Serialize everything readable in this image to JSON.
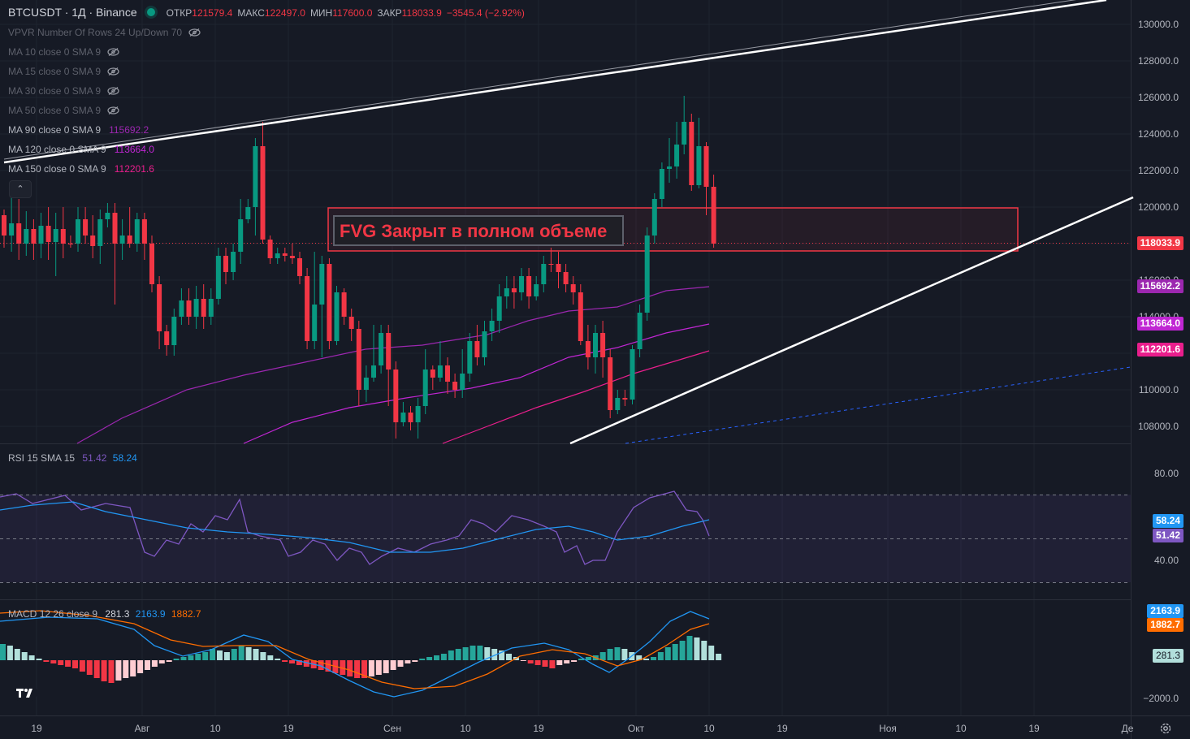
{
  "header": {
    "symbol": "BTCUSDT · 1Д · Binance",
    "open_label": "ОТКР",
    "open": "121579.4",
    "high_label": "МАКС",
    "high": "122497.0",
    "low_label": "МИН",
    "low": "117600.0",
    "close_label": "ЗАКР",
    "close": "118033.9",
    "change": "−3545.4 (−2.92%)"
  },
  "indicators": [
    {
      "label": "VPVR Number Of Rows 24 Up/Down 70",
      "value": "",
      "visible": false
    },
    {
      "label": "MA 10 close 0 SMA 9",
      "value": "",
      "visible": false
    },
    {
      "label": "MA 15 close 0 SMA 9",
      "value": "",
      "visible": false
    },
    {
      "label": "MA 30 close 0 SMA 9",
      "value": "",
      "visible": false
    },
    {
      "label": "MA 50 close 0 SMA 9",
      "value": "",
      "visible": false
    },
    {
      "label": "MA 90 close 0 SMA 9",
      "value": "115692.2",
      "visible": true,
      "color": "#9c27b0"
    },
    {
      "label": "MA 120 close 0 SMA 9",
      "value": "113664.0",
      "visible": true,
      "color": "#c026d3"
    },
    {
      "label": "MA 150 close 0 SMA 9",
      "value": "112201.6",
      "visible": true,
      "color": "#e91e8c"
    }
  ],
  "annotation": {
    "fvg_text": "FVG Закрыт в полном объеме"
  },
  "price_axis": {
    "ticks": [
      "130000.0",
      "128000.0",
      "126000.0",
      "124000.0",
      "122000.0",
      "120000.0",
      "116000.0",
      "114000.0",
      "110000.0",
      "108000.0"
    ],
    "badges": [
      {
        "value": "118033.9",
        "color": "#f23645"
      },
      {
        "value": "115692.2",
        "color": "#9c27b0"
      },
      {
        "value": "113664.0",
        "color": "#c026d3"
      },
      {
        "value": "112201.6",
        "color": "#e91e8c"
      }
    ]
  },
  "rsi": {
    "label": "RSI",
    "params": "15 SMA 15",
    "rsi_value": "51.42",
    "sma_value": "58.24",
    "ticks": [
      "80.00",
      "40.00"
    ],
    "rsi_color": "#7e57c2",
    "sma_color": "#2196f3"
  },
  "macd": {
    "label": "MACD",
    "params": "12 26 close 9",
    "hist": "281.3",
    "macd": "2163.9",
    "signal": "1882.7",
    "ticks": [
      "−2000.0"
    ],
    "macd_color": "#2196f3",
    "signal_color": "#ff6d00"
  },
  "time_axis": [
    "19",
    "Авг",
    "10",
    "19",
    "Сен",
    "10",
    "19",
    "Окт",
    "10",
    "19",
    "Ноя",
    "10",
    "19",
    "Де"
  ],
  "colors": {
    "bg": "#161a25",
    "up": "#089981",
    "down": "#f23645",
    "line": "#ffffff",
    "fvg": "#f23645"
  }
}
